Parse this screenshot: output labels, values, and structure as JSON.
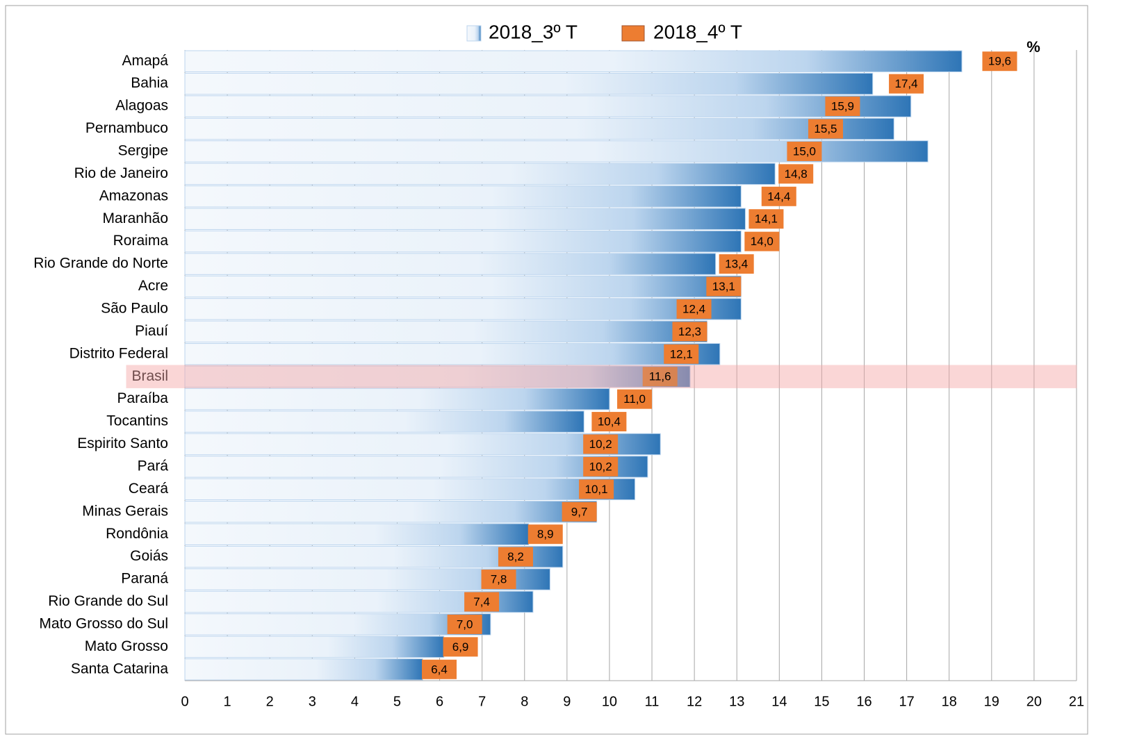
{
  "chart_data": {
    "type": "bar",
    "orientation": "horizontal",
    "unit_label": "%",
    "categories": [
      "Amapá",
      "Bahia",
      "Alagoas",
      "Pernambuco",
      "Sergipe",
      "Rio de Janeiro",
      "Amazonas",
      "Maranhão",
      "Roraima",
      "Rio Grande do Norte",
      "Acre",
      "São Paulo",
      "Piauí",
      "Distrito Federal",
      "Brasil",
      "Paraíba",
      "Tocantins",
      "Espirito Santo",
      "Pará",
      "Ceará",
      "Minas Gerais",
      "Rondônia",
      "Goiás",
      "Paraná",
      "Rio Grande do Sul",
      "Mato Grosso do Sul",
      "Mato Grosso",
      "Santa Catarina"
    ],
    "highlight": "Brasil",
    "series": [
      {
        "name": "2018_3º T",
        "color": "#2e75b6",
        "values": [
          18.3,
          16.2,
          17.1,
          16.7,
          17.5,
          13.9,
          13.1,
          13.2,
          13.1,
          12.5,
          13.1,
          13.1,
          12.3,
          12.6,
          11.9,
          10.0,
          9.4,
          11.2,
          10.9,
          10.6,
          9.7,
          8.1,
          8.9,
          8.6,
          8.2,
          7.2,
          6.1,
          5.6
        ]
      },
      {
        "name": "2018_4º T",
        "color": "#ed7d31",
        "values": [
          19.6,
          17.4,
          15.9,
          15.5,
          15.0,
          14.8,
          14.4,
          14.1,
          14.0,
          13.4,
          13.1,
          12.4,
          12.3,
          12.1,
          11.6,
          11.0,
          10.4,
          10.2,
          10.2,
          10.1,
          9.7,
          8.9,
          8.2,
          7.8,
          7.4,
          7.0,
          6.9,
          6.4
        ],
        "value_labels": [
          "19,6",
          "17,4",
          "15,9",
          "15,5",
          "15,0",
          "14,8",
          "14,4",
          "14,1",
          "14,0",
          "13,4",
          "13,1",
          "12,4",
          "12,3",
          "12,1",
          "11,6",
          "11,0",
          "10,4",
          "10,2",
          "10,2",
          "10,1",
          "9,7",
          "8,9",
          "8,2",
          "7,8",
          "7,4",
          "7,0",
          "6,9",
          "6,4"
        ]
      }
    ],
    "xlim": [
      0,
      21
    ],
    "xticks": [
      0,
      1,
      2,
      3,
      4,
      5,
      6,
      7,
      8,
      9,
      10,
      11,
      12,
      13,
      14,
      15,
      16,
      17,
      18,
      19,
      20,
      21
    ],
    "grid": true
  }
}
